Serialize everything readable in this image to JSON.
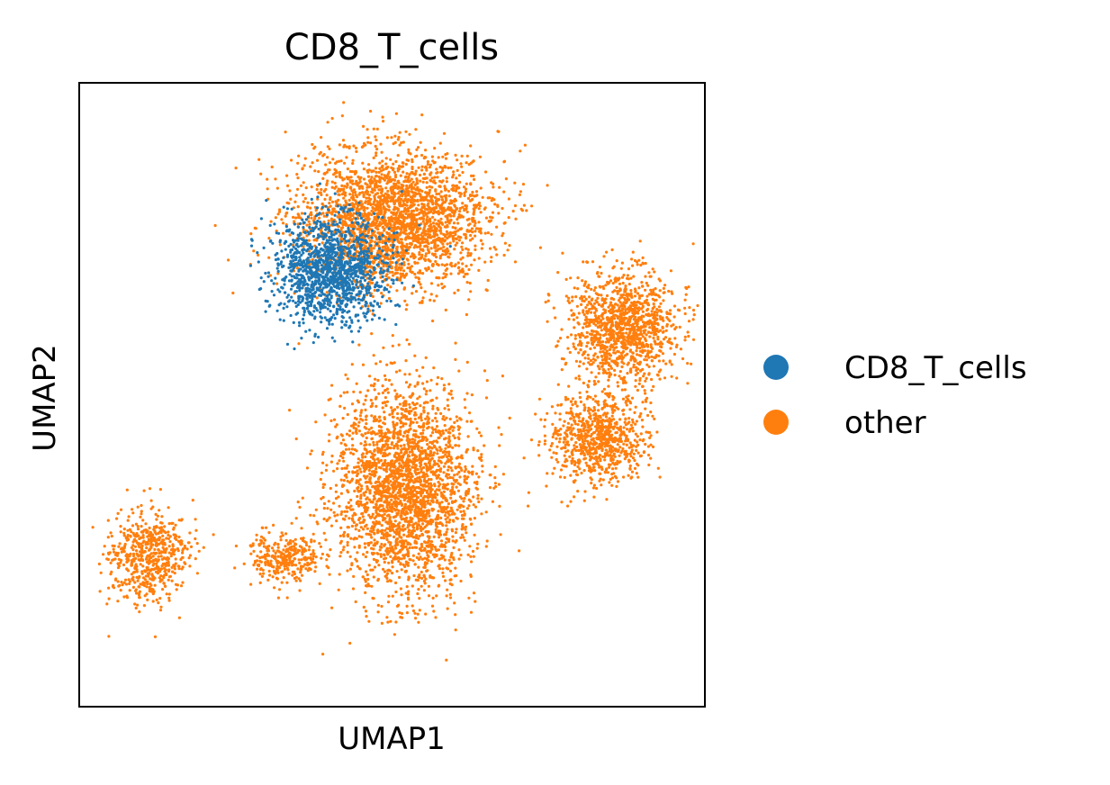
{
  "chart_data": {
    "type": "scatter",
    "title": "CD8_T_cells",
    "xlabel": "UMAP1",
    "ylabel": "UMAP2",
    "xticks": false,
    "yticks": false,
    "grid": false,
    "legend_position": "right",
    "series": [
      {
        "name": "CD8_T_cells",
        "color": "#1f77b4"
      },
      {
        "name": "other",
        "color": "#ff7f0e"
      }
    ],
    "clusters": [
      {
        "series": "other",
        "region": "upper-left",
        "center": [
          0.5,
          0.78
        ],
        "count": 2600
      },
      {
        "series": "CD8_T_cells",
        "region": "upper-left",
        "center": [
          0.4,
          0.7
        ],
        "count": 1400
      },
      {
        "series": "other",
        "region": "right",
        "center": [
          0.87,
          0.61
        ],
        "count": 1200
      },
      {
        "series": "other",
        "region": "lower-right",
        "center": [
          0.83,
          0.43
        ],
        "count": 800
      },
      {
        "series": "other",
        "region": "center",
        "center": [
          0.52,
          0.35
        ],
        "count": 2600
      },
      {
        "series": "other",
        "region": "lower-left",
        "center": [
          0.11,
          0.24
        ],
        "count": 600
      },
      {
        "series": "other",
        "region": "lower-center",
        "center": [
          0.33,
          0.24
        ],
        "count": 300
      }
    ]
  }
}
